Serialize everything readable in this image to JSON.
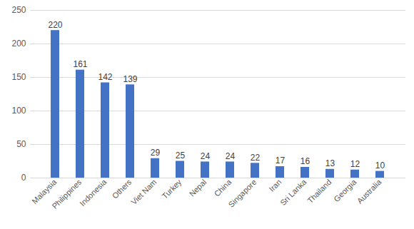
{
  "chart_data": {
    "type": "bar",
    "categories": [
      "Malaysia",
      "Philippines",
      "Indonesia",
      "Others",
      "Viet Nam",
      "Turkey",
      "Nepal",
      "China",
      "Singapore",
      "Iran",
      "Sri Lanka",
      "Thailand",
      "Georgia",
      "Australia"
    ],
    "values": [
      220,
      161,
      142,
      139,
      29,
      25,
      24,
      24,
      22,
      17,
      16,
      13,
      12,
      10
    ],
    "color": "#4472c4",
    "ylim": [
      0,
      250
    ],
    "yticks": [
      0,
      50,
      100,
      150,
      200,
      250
    ],
    "grid": true,
    "data_labels": true
  }
}
